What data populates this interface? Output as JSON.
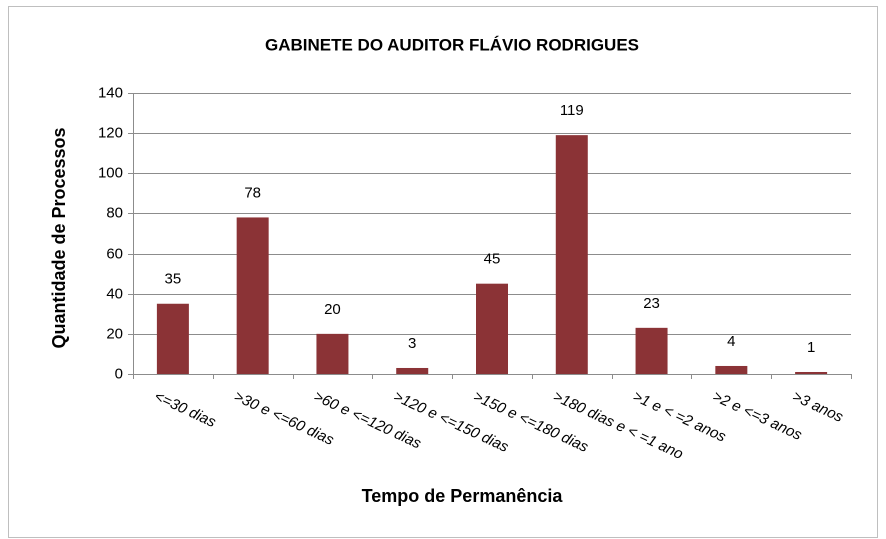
{
  "chart_data": {
    "type": "bar",
    "title": "GABINETE DO AUDITOR FLÁVIO RODRIGUES",
    "x_label": "Tempo de Permanência",
    "y_label": "Quantidade de Processos",
    "categories": [
      "<=30 dias",
      ">30 e <=60 dias",
      ">60 e <=120 dias",
      ">120 e <=150 dias",
      ">150 e <=180 dias",
      ">180 dias e < =1 ano",
      ">1 e < =2 anos",
      ">2 e <=3 anos",
      ">3 anos"
    ],
    "values": [
      35,
      78,
      20,
      3,
      45,
      119,
      23,
      4,
      1
    ],
    "color": "#8b3336",
    "ylim": [
      0,
      140
    ],
    "yticks": [
      0,
      20,
      40,
      60,
      80,
      100,
      120,
      140
    ],
    "grid": true
  }
}
